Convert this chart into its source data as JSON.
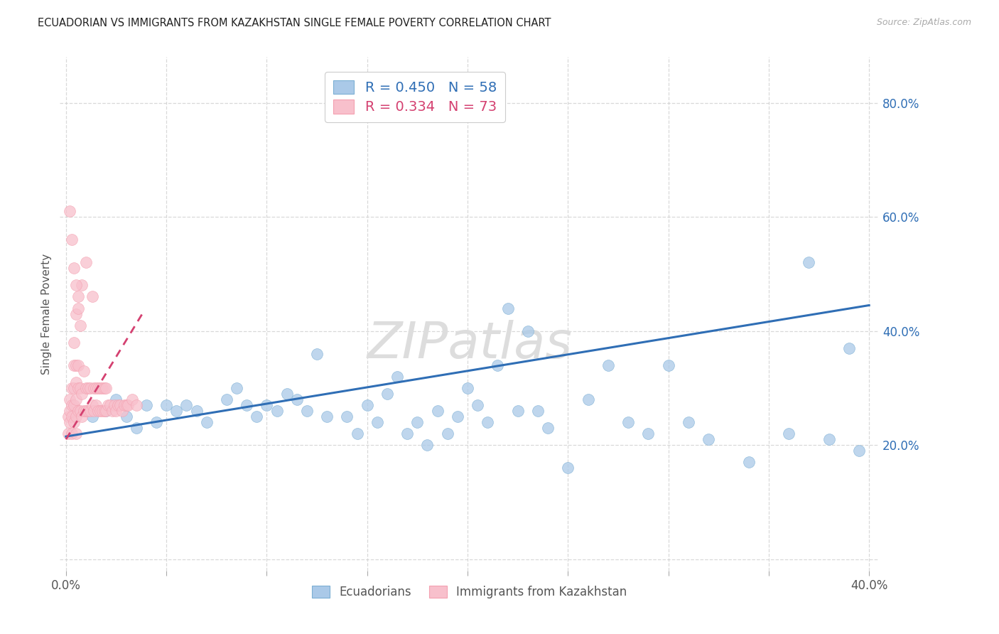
{
  "title": "ECUADORIAN VS IMMIGRANTS FROM KAZAKHSTAN SINGLE FEMALE POVERTY CORRELATION CHART",
  "source": "Source: ZipAtlas.com",
  "ylabel": "Single Female Poverty",
  "xlim": [
    -0.003,
    0.405
  ],
  "ylim": [
    -0.02,
    0.88
  ],
  "xticks": [
    0.0,
    0.05,
    0.1,
    0.15,
    0.2,
    0.25,
    0.3,
    0.35,
    0.4
  ],
  "xtick_labels": [
    "0.0%",
    "",
    "",
    "",
    "",
    "",
    "",
    "",
    "40.0%"
  ],
  "yticks": [
    0.0,
    0.2,
    0.4,
    0.6,
    0.8
  ],
  "ytick_labels": [
    "",
    "20.0%",
    "40.0%",
    "60.0%",
    "80.0%"
  ],
  "grid_color": "#d0d0d0",
  "background_color": "#ffffff",
  "blue_color": "#7bafd4",
  "blue_fill": "#aac9e8",
  "blue_line_color": "#2f6eb5",
  "pink_color": "#f4a0b0",
  "pink_fill": "#f8c0cc",
  "pink_line_color": "#d44070",
  "legend_R_blue": "0.450",
  "legend_N_blue": "58",
  "legend_R_pink": "0.334",
  "legend_N_pink": "73",
  "watermark": "ZIPatlas",
  "blue_line_x0": 0.0,
  "blue_line_y0": 0.215,
  "blue_line_x1": 0.4,
  "blue_line_y1": 0.445,
  "pink_line_x0": 0.0,
  "pink_line_y0": 0.21,
  "pink_line_x1": 0.038,
  "pink_line_y1": 0.43,
  "blue_x": [
    0.013,
    0.02,
    0.025,
    0.03,
    0.035,
    0.04,
    0.045,
    0.05,
    0.055,
    0.06,
    0.065,
    0.07,
    0.08,
    0.085,
    0.09,
    0.095,
    0.1,
    0.105,
    0.11,
    0.115,
    0.12,
    0.125,
    0.13,
    0.14,
    0.145,
    0.15,
    0.155,
    0.16,
    0.165,
    0.17,
    0.175,
    0.18,
    0.185,
    0.19,
    0.195,
    0.2,
    0.205,
    0.21,
    0.215,
    0.22,
    0.225,
    0.235,
    0.24,
    0.26,
    0.27,
    0.28,
    0.29,
    0.3,
    0.31,
    0.32,
    0.34,
    0.36,
    0.37,
    0.38,
    0.39,
    0.395,
    0.23,
    0.25
  ],
  "blue_y": [
    0.25,
    0.26,
    0.28,
    0.25,
    0.23,
    0.27,
    0.24,
    0.27,
    0.26,
    0.27,
    0.26,
    0.24,
    0.28,
    0.3,
    0.27,
    0.25,
    0.27,
    0.26,
    0.29,
    0.28,
    0.26,
    0.36,
    0.25,
    0.25,
    0.22,
    0.27,
    0.24,
    0.29,
    0.32,
    0.22,
    0.24,
    0.2,
    0.26,
    0.22,
    0.25,
    0.3,
    0.27,
    0.24,
    0.34,
    0.44,
    0.26,
    0.26,
    0.23,
    0.28,
    0.34,
    0.24,
    0.22,
    0.34,
    0.24,
    0.21,
    0.17,
    0.22,
    0.52,
    0.21,
    0.37,
    0.19,
    0.4,
    0.16
  ],
  "pink_x": [
    0.001,
    0.001,
    0.002,
    0.002,
    0.002,
    0.003,
    0.003,
    0.003,
    0.003,
    0.004,
    0.004,
    0.004,
    0.004,
    0.004,
    0.005,
    0.005,
    0.005,
    0.005,
    0.005,
    0.005,
    0.006,
    0.006,
    0.006,
    0.006,
    0.007,
    0.007,
    0.007,
    0.008,
    0.008,
    0.008,
    0.009,
    0.009,
    0.01,
    0.01,
    0.01,
    0.011,
    0.011,
    0.012,
    0.012,
    0.013,
    0.013,
    0.014,
    0.014,
    0.015,
    0.015,
    0.016,
    0.016,
    0.017,
    0.017,
    0.018,
    0.018,
    0.019,
    0.019,
    0.02,
    0.02,
    0.021,
    0.022,
    0.023,
    0.024,
    0.025,
    0.026,
    0.027,
    0.028,
    0.029,
    0.03,
    0.031,
    0.033,
    0.035,
    0.002,
    0.003,
    0.004,
    0.005,
    0.006
  ],
  "pink_y": [
    0.25,
    0.22,
    0.24,
    0.26,
    0.28,
    0.22,
    0.25,
    0.27,
    0.3,
    0.24,
    0.27,
    0.3,
    0.34,
    0.38,
    0.22,
    0.25,
    0.28,
    0.31,
    0.34,
    0.43,
    0.26,
    0.3,
    0.34,
    0.46,
    0.26,
    0.3,
    0.41,
    0.25,
    0.29,
    0.48,
    0.26,
    0.33,
    0.26,
    0.3,
    0.52,
    0.26,
    0.3,
    0.26,
    0.3,
    0.27,
    0.46,
    0.26,
    0.3,
    0.27,
    0.3,
    0.26,
    0.3,
    0.26,
    0.3,
    0.26,
    0.3,
    0.26,
    0.3,
    0.26,
    0.3,
    0.27,
    0.27,
    0.26,
    0.27,
    0.26,
    0.27,
    0.27,
    0.26,
    0.27,
    0.27,
    0.27,
    0.28,
    0.27,
    0.61,
    0.56,
    0.51,
    0.48,
    0.44
  ]
}
